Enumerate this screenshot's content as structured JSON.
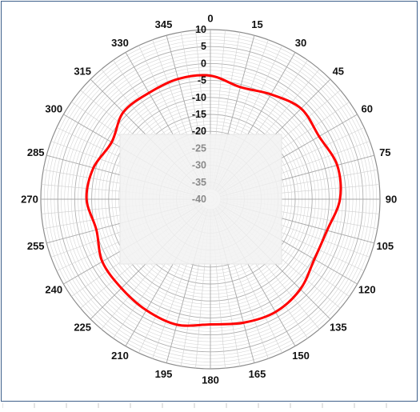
{
  "chart_data": {
    "type": "polar-line",
    "title": "",
    "angular_ticks": [
      "0",
      "15",
      "30",
      "45",
      "60",
      "75",
      "90",
      "105",
      "120",
      "135",
      "150",
      "165",
      "180",
      "195",
      "210",
      "225",
      "240",
      "255",
      "270",
      "285",
      "300",
      "315",
      "330",
      "345"
    ],
    "radial_ticks": [
      "10",
      "5",
      "0",
      "-5",
      "-10",
      "-15",
      "-20",
      "-25",
      "-30",
      "-35",
      "-40"
    ],
    "radial_range": [
      -40,
      10
    ],
    "grid": true,
    "series": [
      {
        "color": "#ff0000",
        "points": [
          {
            "angle": 0,
            "value": -3.6
          },
          {
            "angle": 15,
            "value": -5.8
          },
          {
            "angle": 30,
            "value": -4.3
          },
          {
            "angle": 45,
            "value": -2.2
          },
          {
            "angle": 60,
            "value": -3.0
          },
          {
            "angle": 75,
            "value": -1.3
          },
          {
            "angle": 90,
            "value": -1.8
          },
          {
            "angle": 105,
            "value": -4.4
          },
          {
            "angle": 120,
            "value": -4.6
          },
          {
            "angle": 135,
            "value": -2.5
          },
          {
            "angle": 150,
            "value": -1.6
          },
          {
            "angle": 165,
            "value": -2.3
          },
          {
            "angle": 180,
            "value": -3.1
          },
          {
            "angle": 195,
            "value": -1.7
          },
          {
            "angle": 210,
            "value": -2.2
          },
          {
            "angle": 225,
            "value": -2.9
          },
          {
            "angle": 240,
            "value": -3.2
          },
          {
            "angle": 255,
            "value": -5.2
          },
          {
            "angle": 270,
            "value": -3.5
          },
          {
            "angle": 285,
            "value": -4.3
          },
          {
            "angle": 300,
            "value": -6.4
          },
          {
            "angle": 315,
            "value": -3.7
          },
          {
            "angle": 330,
            "value": -3.8
          },
          {
            "angle": 345,
            "value": -3.3
          }
        ]
      }
    ]
  }
}
